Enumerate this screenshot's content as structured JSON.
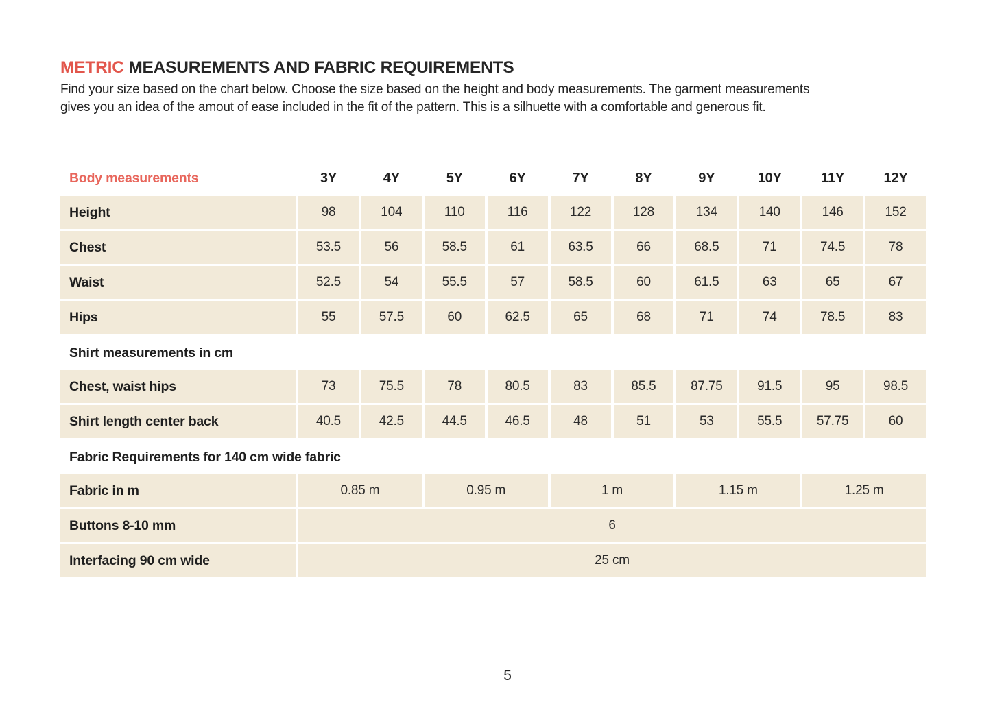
{
  "page": {
    "title_highlight": "METRIC",
    "title_rest": " MEASUREMENTS AND FABRIC REQUIREMENTS",
    "intro_line1": "Find your size based on the chart below. Choose the size based on the height and body measurements. The garment measurements",
    "intro_line2": "gives you an idea of the amout of ease included in the fit of the pattern. This is a silhuette with a comfortable and generous fit.",
    "page_number": "5"
  },
  "colors": {
    "accent_red": "#e2564c",
    "cell_background": "#f2ead9",
    "text": "#1f1f1f"
  },
  "table": {
    "header_label": "Body measurements",
    "sizes": [
      "3Y",
      "4Y",
      "5Y",
      "6Y",
      "7Y",
      "8Y",
      "9Y",
      "10Y",
      "11Y",
      "12Y"
    ],
    "body_rows": [
      {
        "label": "Height",
        "values": [
          "98",
          "104",
          "110",
          "116",
          "122",
          "128",
          "134",
          "140",
          "146",
          "152"
        ]
      },
      {
        "label": "Chest",
        "values": [
          "53.5",
          "56",
          "58.5",
          "61",
          "63.5",
          "66",
          "68.5",
          "71",
          "74.5",
          "78"
        ]
      },
      {
        "label": "Waist",
        "values": [
          "52.5",
          "54",
          "55.5",
          "57",
          "58.5",
          "60",
          "61.5",
          "63",
          "65",
          "67"
        ]
      },
      {
        "label": "Hips",
        "values": [
          "55",
          "57.5",
          "60",
          "62.5",
          "65",
          "68",
          "71",
          "74",
          "78.5",
          "83"
        ]
      }
    ],
    "shirt_section_label": "Shirt measurements in cm",
    "shirt_rows": [
      {
        "label": "Chest, waist hips",
        "values": [
          "73",
          "75.5",
          "78",
          "80.5",
          "83",
          "85.5",
          "87.75",
          "91.5",
          "95",
          "98.5"
        ]
      },
      {
        "label": "Shirt length center back",
        "values": [
          "40.5",
          "42.5",
          "44.5",
          "46.5",
          "48",
          "51",
          "53",
          "55.5",
          "57.75",
          "60"
        ]
      }
    ],
    "fabric_section_label": "Fabric Requirements for 140 cm wide fabric",
    "fabric_row": {
      "label": "Fabric  in m",
      "values": [
        "0.85 m",
        "0.95 m",
        "1 m",
        "1.15 m",
        "1.25 m"
      ]
    },
    "buttons_row": {
      "label": "Buttons 8-10 mm",
      "value": "6"
    },
    "interfacing_row": {
      "label": "Interfacing 90 cm wide",
      "value": "25 cm"
    }
  }
}
